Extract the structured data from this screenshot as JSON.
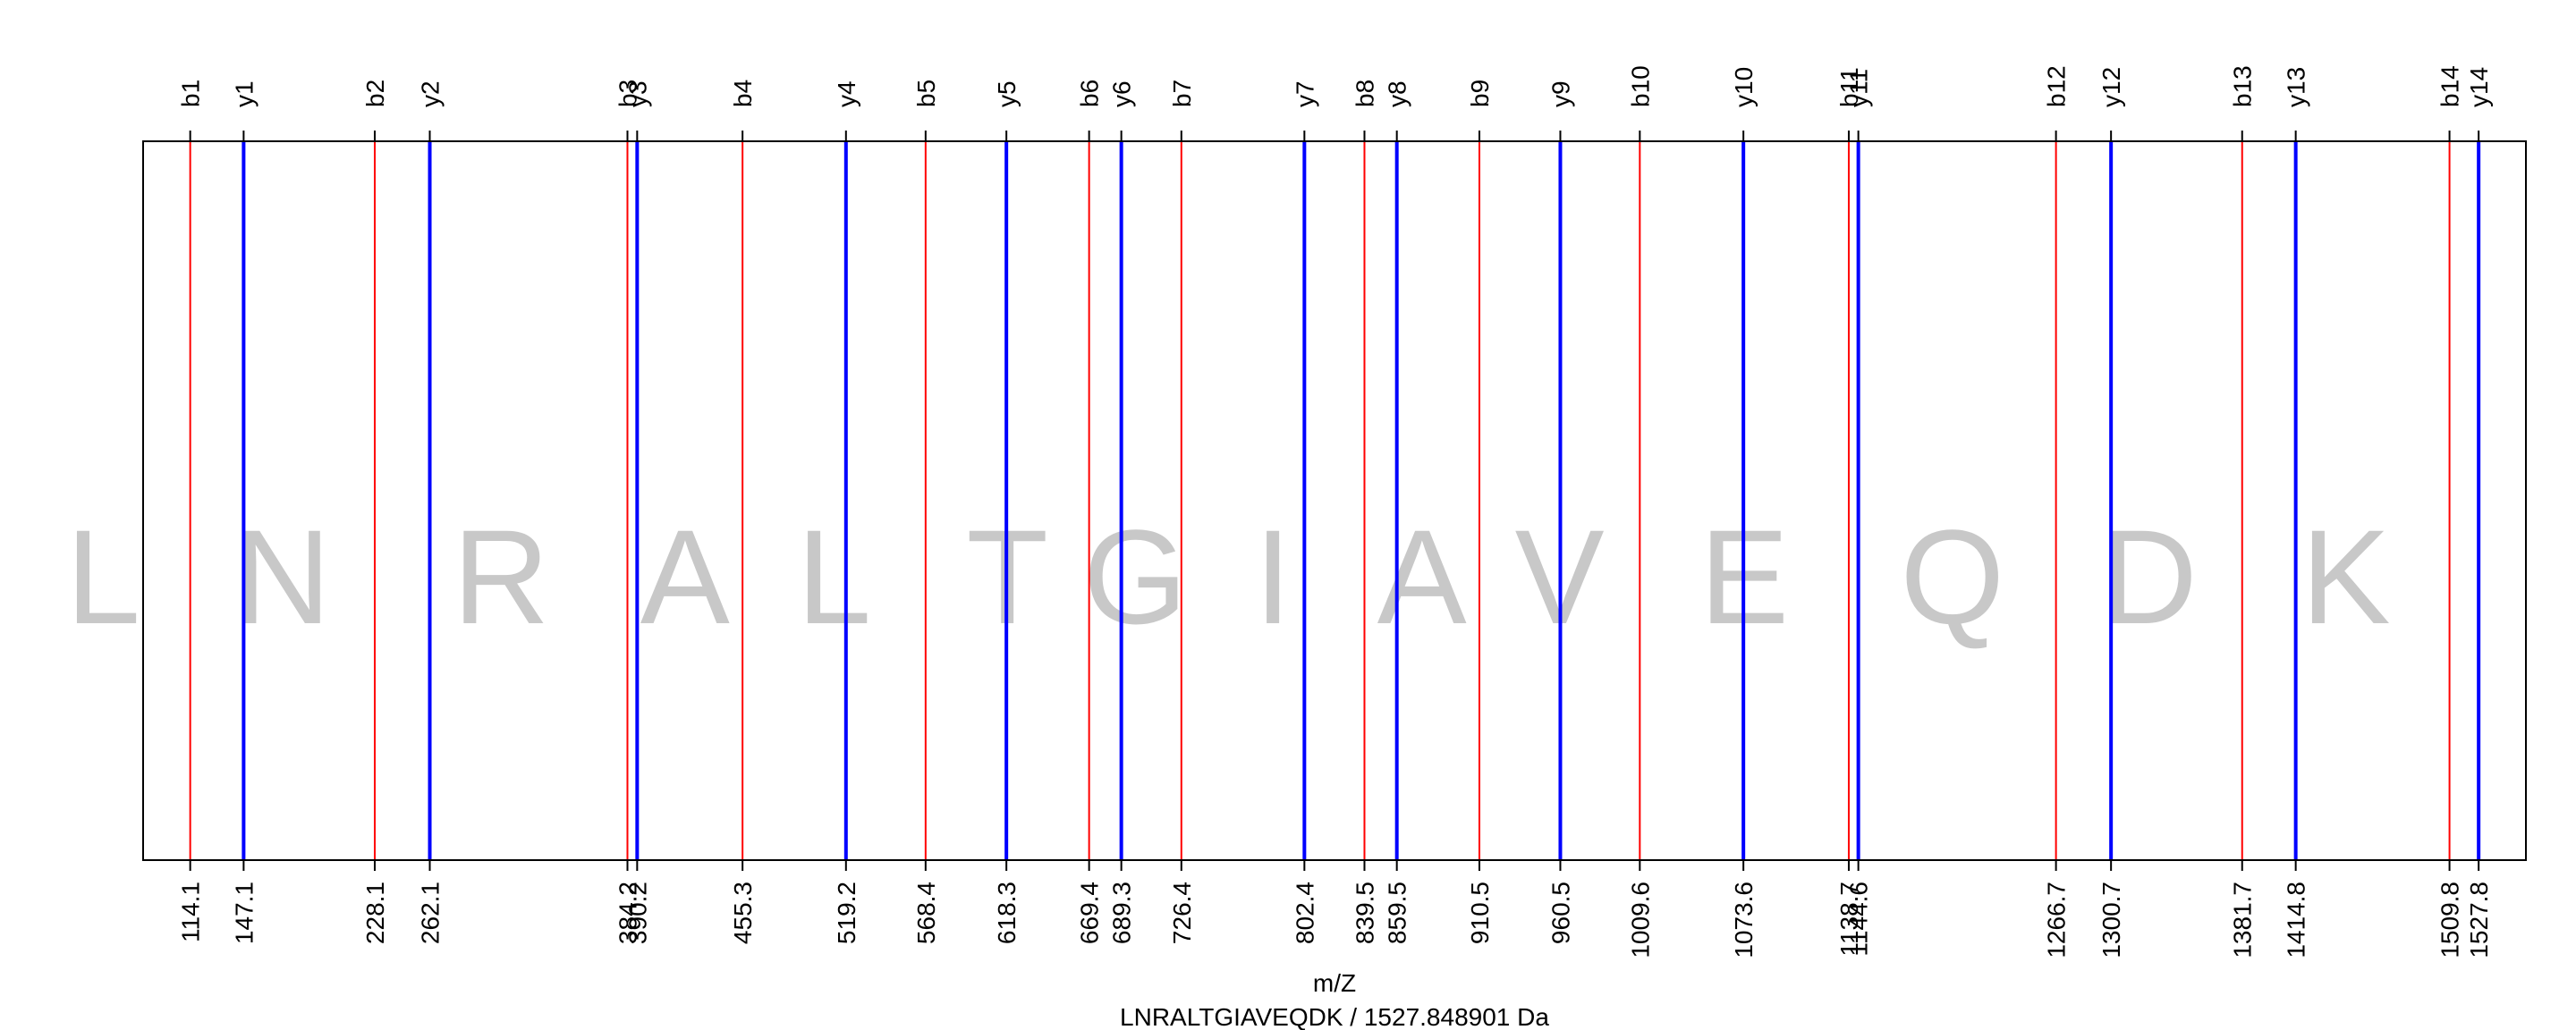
{
  "chart_data": {
    "type": "spectrum",
    "xlabel": "m/Z",
    "subtitle": "LNRALTGIAVEQDK / 1527.848901 Da",
    "xlim": [
      85,
      1557
    ],
    "colors": {
      "b": "#ff0000",
      "y": "#0000ff",
      "residue": "#c8c8c8"
    },
    "b_ions": [
      {
        "label": "b1",
        "mz": 114.1
      },
      {
        "label": "b2",
        "mz": 228.1
      },
      {
        "label": "b3",
        "mz": 384.2
      },
      {
        "label": "b4",
        "mz": 455.3
      },
      {
        "label": "b5",
        "mz": 568.4
      },
      {
        "label": "b6",
        "mz": 669.4
      },
      {
        "label": "b7",
        "mz": 726.4
      },
      {
        "label": "b8",
        "mz": 839.5
      },
      {
        "label": "b9",
        "mz": 910.5
      },
      {
        "label": "b10",
        "mz": 1009.6
      },
      {
        "label": "b11",
        "mz": 1138.7
      },
      {
        "label": "b12",
        "mz": 1266.7
      },
      {
        "label": "b13",
        "mz": 1381.7
      },
      {
        "label": "b14",
        "mz": 1509.8
      }
    ],
    "y_ions": [
      {
        "label": "y1",
        "mz": 147.1
      },
      {
        "label": "y2",
        "mz": 262.1
      },
      {
        "label": "y3",
        "mz": 390.2
      },
      {
        "label": "y4",
        "mz": 519.2
      },
      {
        "label": "y5",
        "mz": 618.3
      },
      {
        "label": "y6",
        "mz": 689.3
      },
      {
        "label": "y7",
        "mz": 802.4
      },
      {
        "label": "y8",
        "mz": 859.5
      },
      {
        "label": "y9",
        "mz": 960.5
      },
      {
        "label": "y10",
        "mz": 1073.6
      },
      {
        "label": "y11",
        "mz": 1144.6
      },
      {
        "label": "y12",
        "mz": 1300.7
      },
      {
        "label": "y13",
        "mz": 1414.8
      },
      {
        "label": "y14",
        "mz": 1527.8
      }
    ],
    "residues": [
      "L",
      "N",
      "R",
      "A",
      "L",
      "T",
      "G",
      "I",
      "A",
      "V",
      "E",
      "Q",
      "D",
      "K"
    ]
  }
}
